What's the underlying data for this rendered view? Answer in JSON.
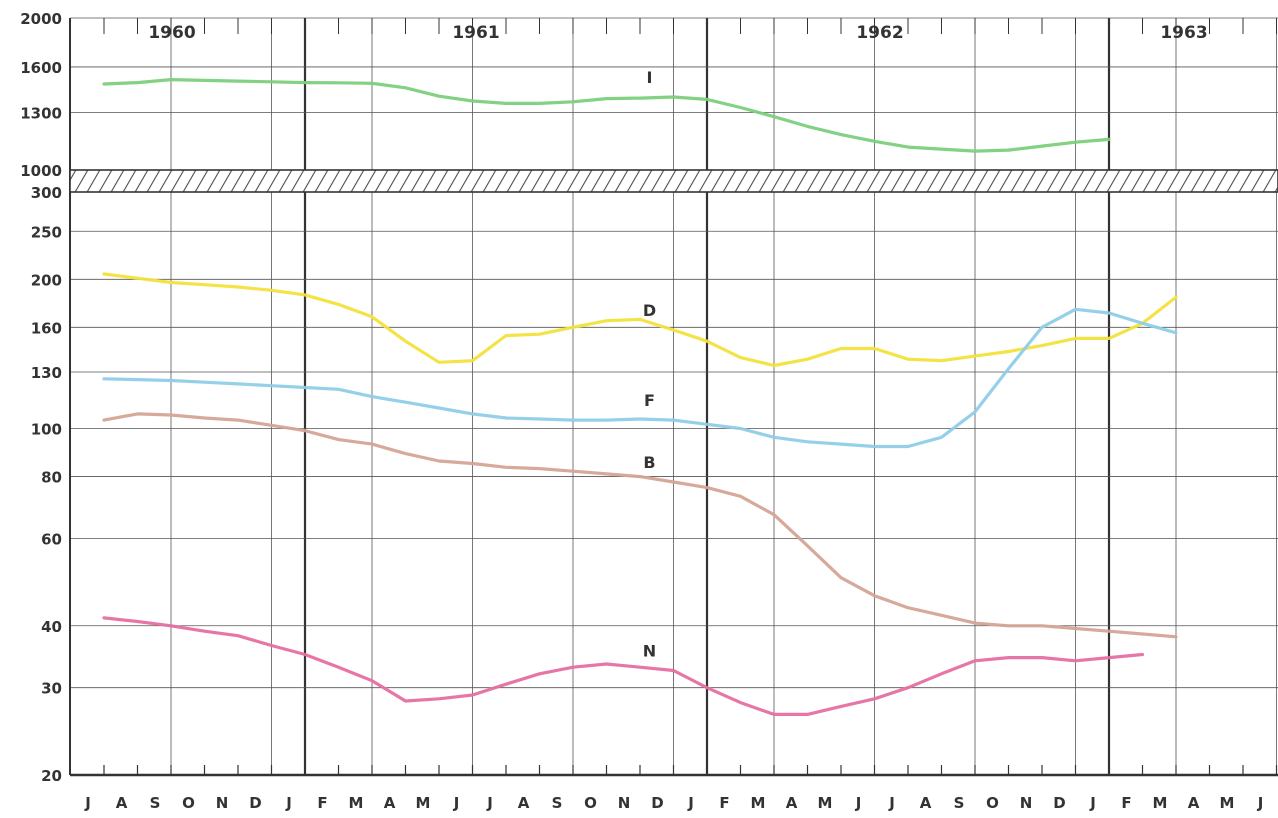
{
  "chart_data": {
    "type": "line",
    "title": "",
    "xlabel": "",
    "ylabel": "",
    "year_labels": [
      "1960",
      "1961",
      "1962",
      "1963"
    ],
    "month_ticks": [
      "J",
      "A",
      "S",
      "O",
      "N",
      "D",
      "J",
      "F",
      "M",
      "A",
      "M",
      "J",
      "J",
      "A",
      "S",
      "O",
      "N",
      "D",
      "J",
      "F",
      "M",
      "A",
      "M",
      "J",
      "J",
      "A",
      "S",
      "O",
      "N",
      "D",
      "J",
      "F",
      "M",
      "A",
      "M",
      "J"
    ],
    "x_start": "1960-07",
    "upper_panel": {
      "yticks": [
        "2000",
        "1600",
        "1300",
        "1000"
      ],
      "scale": "log",
      "ylim": [
        1000,
        2000
      ],
      "series": [
        {
          "name": "I",
          "color": "#7ccf7b",
          "points": [
            [
              "1960-07",
              1480
            ],
            [
              "1960-08",
              1490
            ],
            [
              "1960-09",
              1510
            ],
            [
              "1960-10",
              1505
            ],
            [
              "1960-11",
              1500
            ],
            [
              "1960-12",
              1495
            ],
            [
              "1961-01",
              1490
            ],
            [
              "1961-02",
              1488
            ],
            [
              "1961-03",
              1485
            ],
            [
              "1961-04",
              1455
            ],
            [
              "1961-05",
              1400
            ],
            [
              "1961-06",
              1370
            ],
            [
              "1961-07",
              1355
            ],
            [
              "1961-08",
              1355
            ],
            [
              "1961-09",
              1365
            ],
            [
              "1961-10",
              1385
            ],
            [
              "1961-11",
              1388
            ],
            [
              "1961-12",
              1395
            ],
            [
              "1962-01",
              1380
            ],
            [
              "1962-02",
              1330
            ],
            [
              "1962-03",
              1275
            ],
            [
              "1962-04",
              1220
            ],
            [
              "1962-05",
              1175
            ],
            [
              "1962-06",
              1140
            ],
            [
              "1962-07",
              1110
            ],
            [
              "1962-08",
              1100
            ],
            [
              "1962-09",
              1090
            ],
            [
              "1962-10",
              1095
            ],
            [
              "1962-11",
              1115
            ],
            [
              "1962-12",
              1135
            ],
            [
              "1963-01",
              1150
            ]
          ],
          "label_at": "1961-12"
        }
      ]
    },
    "lower_panel": {
      "yticks": [
        "300",
        "250",
        "200",
        "160",
        "130",
        "100",
        "80",
        "60",
        "40",
        "30",
        "20"
      ],
      "scale": "log",
      "ylim": [
        20,
        300
      ],
      "series": [
        {
          "name": "D",
          "color": "#f2e13c",
          "points": [
            [
              "1960-07",
              205
            ],
            [
              "1960-08",
              201
            ],
            [
              "1960-09",
              197
            ],
            [
              "1960-10",
              195
            ],
            [
              "1960-11",
              193
            ],
            [
              "1960-12",
              190
            ],
            [
              "1961-01",
              186
            ],
            [
              "1961-02",
              178
            ],
            [
              "1961-03",
              168
            ],
            [
              "1961-04",
              150
            ],
            [
              "1961-05",
              136
            ],
            [
              "1961-06",
              137
            ],
            [
              "1961-07",
              154
            ],
            [
              "1961-08",
              155
            ],
            [
              "1961-09",
              160
            ],
            [
              "1961-10",
              165
            ],
            [
              "1961-11",
              166
            ],
            [
              "1961-12",
              158
            ],
            [
              "1962-01",
              150
            ],
            [
              "1962-02",
              139
            ],
            [
              "1962-03",
              134
            ],
            [
              "1962-04",
              138
            ],
            [
              "1962-05",
              145
            ],
            [
              "1962-06",
              145
            ],
            [
              "1962-07",
              138
            ],
            [
              "1962-08",
              137
            ],
            [
              "1962-09",
              140
            ],
            [
              "1962-10",
              143
            ],
            [
              "1962-11",
              147
            ],
            [
              "1962-12",
              152
            ],
            [
              "1963-01",
              152
            ],
            [
              "1963-02",
              163
            ],
            [
              "1963-03",
              184
            ]
          ],
          "label_at": "1961-12"
        },
        {
          "name": "F",
          "color": "#8fcde8",
          "points": [
            [
              "1960-07",
              126
            ],
            [
              "1960-08",
              125.5
            ],
            [
              "1960-09",
              125
            ],
            [
              "1960-10",
              124
            ],
            [
              "1960-11",
              123
            ],
            [
              "1960-12",
              122
            ],
            [
              "1961-01",
              121
            ],
            [
              "1961-02",
              120
            ],
            [
              "1961-03",
              116
            ],
            [
              "1961-04",
              113
            ],
            [
              "1961-05",
              110
            ],
            [
              "1961-06",
              107
            ],
            [
              "1961-07",
              105
            ],
            [
              "1961-08",
              104.5
            ],
            [
              "1961-09",
              104
            ],
            [
              "1961-10",
              104
            ],
            [
              "1961-11",
              104.5
            ],
            [
              "1961-12",
              104
            ],
            [
              "1962-01",
              102
            ],
            [
              "1962-02",
              100
            ],
            [
              "1962-03",
              96
            ],
            [
              "1962-04",
              94
            ],
            [
              "1962-05",
              93
            ],
            [
              "1962-06",
              92
            ],
            [
              "1962-07",
              92
            ],
            [
              "1962-08",
              96
            ],
            [
              "1962-09",
              108
            ],
            [
              "1962-10",
              132
            ],
            [
              "1962-11",
              160
            ],
            [
              "1962-12",
              174
            ],
            [
              "1963-01",
              171
            ],
            [
              "1963-02",
              163
            ],
            [
              "1963-03",
              156
            ]
          ],
          "label_at": "1961-12"
        },
        {
          "name": "B",
          "color": "#d4a496",
          "points": [
            [
              "1960-07",
              104
            ],
            [
              "1960-08",
              107
            ],
            [
              "1960-09",
              106.5
            ],
            [
              "1960-10",
              105
            ],
            [
              "1960-11",
              104
            ],
            [
              "1960-12",
              101.5
            ],
            [
              "1961-01",
              99
            ],
            [
              "1961-02",
              95
            ],
            [
              "1961-03",
              93
            ],
            [
              "1961-04",
              89
            ],
            [
              "1961-05",
              86
            ],
            [
              "1961-06",
              85
            ],
            [
              "1961-07",
              83.5
            ],
            [
              "1961-08",
              83
            ],
            [
              "1961-09",
              82
            ],
            [
              "1961-10",
              81
            ],
            [
              "1961-11",
              80
            ],
            [
              "1961-12",
              78
            ],
            [
              "1962-01",
              76
            ],
            [
              "1962-02",
              73
            ],
            [
              "1962-03",
              67
            ],
            [
              "1962-04",
              58
            ],
            [
              "1962-05",
              50
            ],
            [
              "1962-06",
              46
            ],
            [
              "1962-07",
              43.5
            ],
            [
              "1962-08",
              42
            ],
            [
              "1962-09",
              40.5
            ],
            [
              "1962-10",
              40
            ],
            [
              "1962-11",
              40
            ],
            [
              "1962-12",
              39.5
            ],
            [
              "1963-01",
              39
            ],
            [
              "1963-02",
              38.5
            ],
            [
              "1963-03",
              38
            ]
          ],
          "label_at": "1961-12"
        },
        {
          "name": "N",
          "color": "#e66fa2",
          "points": [
            [
              "1960-07",
              41.5
            ],
            [
              "1960-08",
              40.8
            ],
            [
              "1960-09",
              40
            ],
            [
              "1960-10",
              39
            ],
            [
              "1960-11",
              38.2
            ],
            [
              "1960-12",
              36.5
            ],
            [
              "1961-01",
              35
            ],
            [
              "1961-02",
              33
            ],
            [
              "1961-03",
              31
            ],
            [
              "1961-04",
              28.2
            ],
            [
              "1961-05",
              28.5
            ],
            [
              "1961-06",
              29
            ],
            [
              "1961-07",
              30.5
            ],
            [
              "1961-08",
              32
            ],
            [
              "1961-09",
              33
            ],
            [
              "1961-10",
              33.5
            ],
            [
              "1961-11",
              33
            ],
            [
              "1961-12",
              32.5
            ],
            [
              "1962-01",
              30
            ],
            [
              "1962-02",
              28
            ],
            [
              "1962-03",
              26.5
            ],
            [
              "1962-04",
              26.5
            ],
            [
              "1962-05",
              27.5
            ],
            [
              "1962-06",
              28.5
            ],
            [
              "1962-07",
              30
            ],
            [
              "1962-08",
              32
            ],
            [
              "1962-09",
              34
            ],
            [
              "1962-10",
              34.5
            ],
            [
              "1962-11",
              34.5
            ],
            [
              "1962-12",
              34
            ],
            [
              "1963-01",
              34.5
            ],
            [
              "1963-02",
              35
            ]
          ],
          "label_at": "1961-12"
        }
      ]
    },
    "grid": true,
    "legend": "inline-labels"
  }
}
